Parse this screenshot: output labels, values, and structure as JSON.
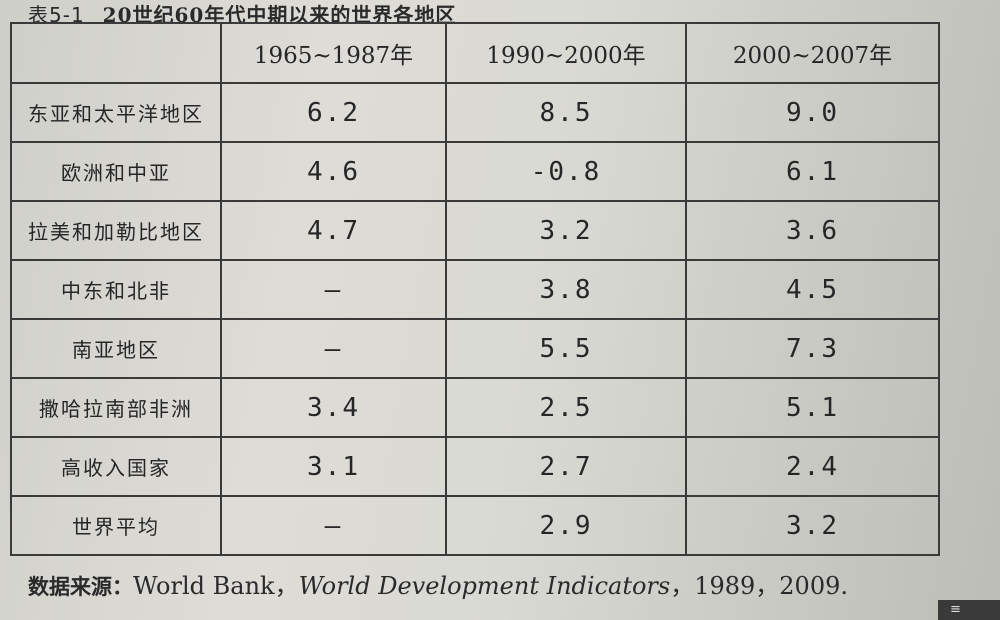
{
  "caption": {
    "number": "表5-1",
    "title": "20世纪60年代中期以来的世界各地区"
  },
  "table": {
    "headers": [
      "",
      "1965~1987年",
      "1990~2000年",
      "2000~2007年"
    ],
    "rows": [
      {
        "region": "东亚和太平洋地区",
        "values": [
          "6.2",
          "8.5",
          "9.0"
        ]
      },
      {
        "region": "欧洲和中亚",
        "values": [
          "4.6",
          "-0.8",
          "6.1"
        ]
      },
      {
        "region": "拉美和加勒比地区",
        "values": [
          "4.7",
          "3.2",
          "3.6"
        ]
      },
      {
        "region": "中东和北非",
        "values": [
          "—",
          "3.8",
          "4.5"
        ]
      },
      {
        "region": "南亚地区",
        "values": [
          "—",
          "5.5",
          "7.3"
        ]
      },
      {
        "region": "撒哈拉南部非洲",
        "values": [
          "3.4",
          "2.5",
          "5.1"
        ]
      },
      {
        "region": "高收入国家",
        "values": [
          "3.1",
          "2.7",
          "2.4"
        ]
      },
      {
        "region": "世界平均",
        "values": [
          "—",
          "2.9",
          "3.2"
        ]
      }
    ]
  },
  "source": {
    "label": "数据来源：",
    "publisher": "World Bank，",
    "title": "World Development Indicators",
    "years": "，1989，2009."
  },
  "corner_icon": {
    "icon": "menu-icon",
    "glyph": "≡"
  }
}
